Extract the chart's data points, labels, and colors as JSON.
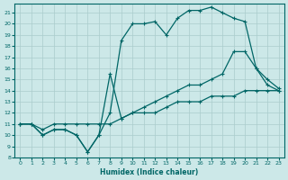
{
  "xlabel": "Humidex (Indice chaleur)",
  "bg_color": "#cce8e8",
  "grid_color": "#aacccc",
  "line_color": "#006666",
  "xlim": [
    -0.5,
    23.5
  ],
  "ylim": [
    8,
    21.8
  ],
  "xticks": [
    0,
    1,
    2,
    3,
    4,
    5,
    6,
    7,
    8,
    9,
    10,
    11,
    12,
    13,
    14,
    15,
    16,
    17,
    18,
    19,
    20,
    21,
    22,
    23
  ],
  "yticks": [
    8,
    9,
    10,
    11,
    12,
    13,
    14,
    15,
    16,
    17,
    18,
    19,
    20,
    21
  ],
  "line1_x": [
    0,
    1,
    2,
    3,
    4,
    5,
    6,
    7,
    8,
    9,
    10,
    11,
    12,
    13,
    14,
    15,
    16,
    17,
    18,
    19,
    20,
    21,
    22,
    23
  ],
  "line1_y": [
    11.0,
    11.0,
    10.5,
    11.0,
    11.0,
    11.0,
    11.0,
    11.0,
    11.0,
    11.5,
    12.0,
    12.0,
    12.0,
    12.5,
    13.0,
    13.0,
    13.0,
    13.5,
    13.5,
    13.5,
    14.0,
    14.0,
    14.0,
    14.0
  ],
  "line2_x": [
    0,
    1,
    2,
    3,
    4,
    5,
    6,
    7,
    8,
    9,
    10,
    11,
    12,
    13,
    14,
    15,
    16,
    17,
    18,
    19,
    20,
    21,
    22,
    23
  ],
  "line2_y": [
    11.0,
    11.0,
    10.0,
    10.5,
    10.5,
    10.0,
    8.5,
    10.0,
    15.5,
    11.5,
    12.0,
    12.5,
    13.0,
    13.5,
    14.0,
    14.5,
    14.5,
    15.0,
    15.5,
    17.5,
    17.5,
    16.0,
    14.5,
    14.0
  ],
  "line3_x": [
    0,
    1,
    2,
    3,
    4,
    5,
    6,
    7,
    8,
    9,
    10,
    11,
    12,
    13,
    14,
    15,
    16,
    17,
    18,
    19,
    20,
    21,
    22,
    23
  ],
  "line3_y": [
    11.0,
    11.0,
    10.0,
    10.5,
    10.5,
    10.0,
    8.5,
    10.0,
    12.0,
    18.5,
    20.0,
    20.0,
    20.2,
    19.0,
    20.5,
    21.2,
    21.2,
    21.5,
    21.0,
    20.5,
    20.2,
    16.0,
    15.0,
    14.2
  ]
}
